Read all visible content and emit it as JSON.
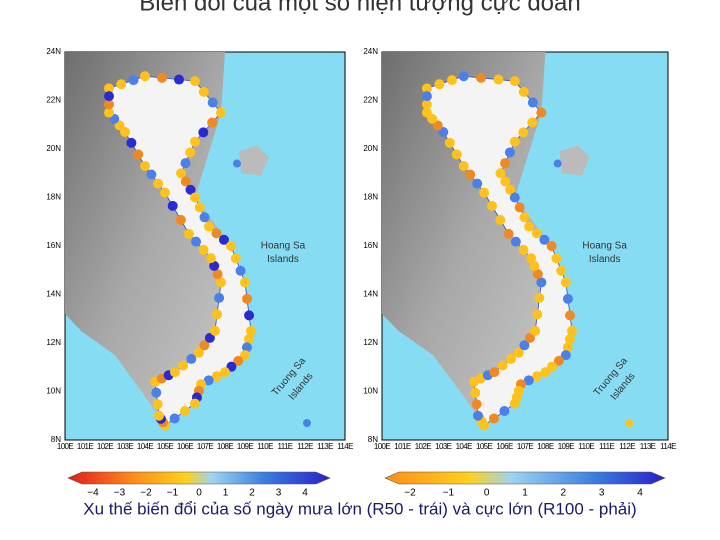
{
  "title": "Biến đổi của một số hiện tượng cực đoan",
  "maps": [
    {
      "lat_labels": [
        "24N",
        "22N",
        "20N",
        "18N",
        "16N",
        "14N",
        "12N",
        "10N",
        "8N"
      ],
      "lon_labels": [
        "100E",
        "101E",
        "102E",
        "103E",
        "104E",
        "105E",
        "106E",
        "107E",
        "108E",
        "109E",
        "110E",
        "111E",
        "112E",
        "113E",
        "114E"
      ],
      "island_labels": [
        "Hoang Sa",
        "Islands",
        "Truong Sa",
        "Islands"
      ],
      "colorbar_labels": [
        "−4",
        "−3",
        "−2",
        "−1",
        "0",
        "1",
        "2",
        "3",
        "4"
      ]
    },
    {
      "lat_labels": [
        "24N",
        "22N",
        "20N",
        "18N",
        "16N",
        "14N",
        "12N",
        "10N",
        "8N"
      ],
      "lon_labels": [
        "100E",
        "101E",
        "102E",
        "103E",
        "104E",
        "105E",
        "106E",
        "107E",
        "108E",
        "109E",
        "110E",
        "111E",
        "112E",
        "113E",
        "114E"
      ],
      "island_labels": [
        "Hoang Sa",
        "Islands",
        "Truong Sa",
        "Islands"
      ],
      "colorbar_labels": [
        "−2",
        "−1",
        "0",
        "1",
        "2",
        "3",
        "4"
      ]
    }
  ],
  "caption": "Xu thế biến đổi của số ngày mưa lớn (R50 - trái) và cực lớn (R100 - phải)"
}
